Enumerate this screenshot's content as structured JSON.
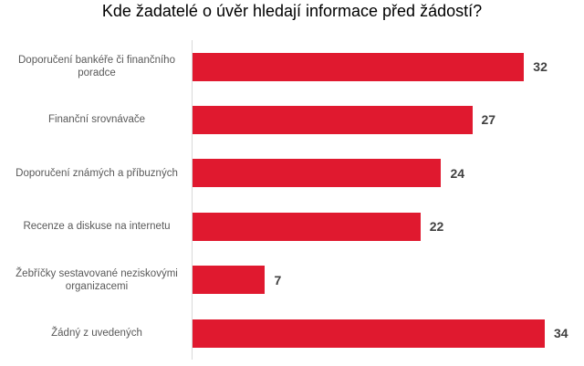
{
  "chart_data": {
    "type": "bar",
    "orientation": "horizontal",
    "title": "Kde žadatelé o úvěr hledají informace před žádostí?",
    "categories": [
      "Doporučení bankéře či finančního poradce",
      "Finanční srovnávače",
      "Doporučení známých a příbuzných",
      "Recenze a diskuse na internetu",
      "Žebříčky sestavované neziskovými organizacemi",
      "Žádný z uvedených"
    ],
    "values": [
      32,
      27,
      24,
      22,
      7,
      34
    ],
    "color": "#e0192f"
  }
}
